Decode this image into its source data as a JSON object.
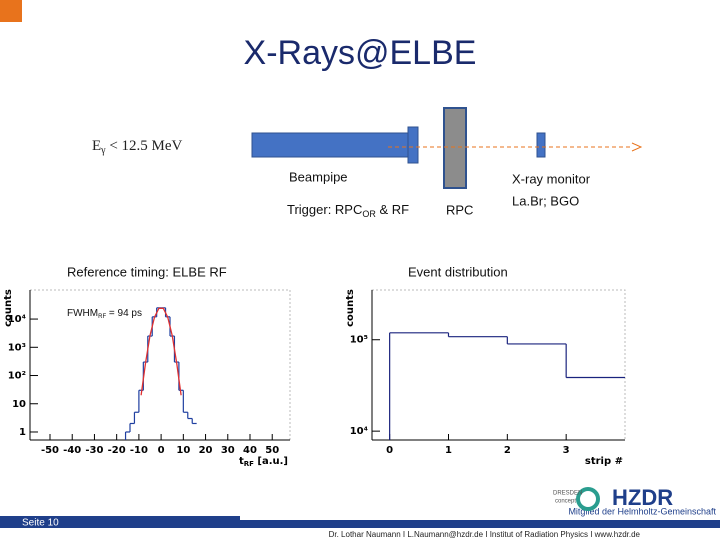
{
  "slide": {
    "title": "X-Rays@ELBE",
    "energy": [
      "E",
      "γ",
      " < 12.5 MeV"
    ],
    "beampipe": "Beampipe",
    "trigger": [
      "Trigger: RPC",
      "OR",
      " & RF"
    ],
    "rpc": "RPC",
    "monitor": [
      "X-ray monitor",
      "La.Br; BGO"
    ],
    "page": "Seite 10",
    "member": "Mitglied der Helmholtz-Gemeinschaft",
    "footer": "Dr. Lothar Naumann  I  L.Naumann@hzdr.de  I  Institut of Radiation Physics  I  www.hzdr.de",
    "logo_left": [
      "DRESDEN",
      "concept"
    ],
    "logo_right": "HZDR"
  },
  "chart_data": [
    {
      "type": "histogram",
      "title": "Reference timing: ELBE RF",
      "annotation": [
        "FWHM",
        "RF",
        " = 94 ps"
      ],
      "xlabel": [
        "t",
        "RF",
        " [a.u.]"
      ],
      "ylabel": "counts",
      "bins": [
        -16,
        -14,
        -12,
        -10,
        -8,
        -6,
        -4,
        -2,
        0,
        2,
        4,
        6,
        8,
        10,
        12,
        14,
        16
      ],
      "series": [
        {
          "color": "#1f3fa0",
          "values": [
            1,
            2,
            5,
            30,
            300,
            2500,
            12000,
            25000,
            25000,
            12000,
            2500,
            300,
            30,
            5,
            3,
            2
          ]
        },
        {
          "color": "#e03030",
          "line": true,
          "x": [
            -9,
            -7,
            -5,
            -3,
            -1,
            1,
            3,
            5,
            7,
            9
          ],
          "values": [
            20,
            280,
            2600,
            11500,
            24000,
            24000,
            11500,
            2600,
            280,
            20
          ]
        }
      ],
      "log_y": true,
      "xlim": [
        -59,
        58
      ],
      "xticks": [
        -50,
        -40,
        -30,
        -20,
        -10,
        0,
        10,
        20,
        30,
        40,
        50
      ],
      "ylim": [
        0.52,
        107000
      ],
      "yticks": [
        1,
        10,
        {
          "value": 100,
          "label": "10²"
        },
        {
          "value": 1000,
          "label": "10³"
        },
        {
          "value": 10000,
          "label": "10⁴"
        }
      ]
    },
    {
      "type": "histogram",
      "title": "Event distribution",
      "xlabel": [
        "strip #"
      ],
      "ylabel": "counts",
      "bins": [
        0,
        1,
        2,
        3,
        4
      ],
      "series": [
        {
          "color": "#1a237e",
          "values": [
            119000,
            108000,
            90000,
            38600
          ]
        }
      ],
      "log_y": true,
      "xlim": [
        -0.3,
        4.0
      ],
      "xticks": [
        0,
        1,
        2,
        3
      ],
      "ylim": [
        8000,
        350000
      ],
      "yticks": [
        {
          "value": 10000,
          "label": "10⁴"
        },
        {
          "value": 100000,
          "label": "10⁵"
        }
      ]
    }
  ]
}
